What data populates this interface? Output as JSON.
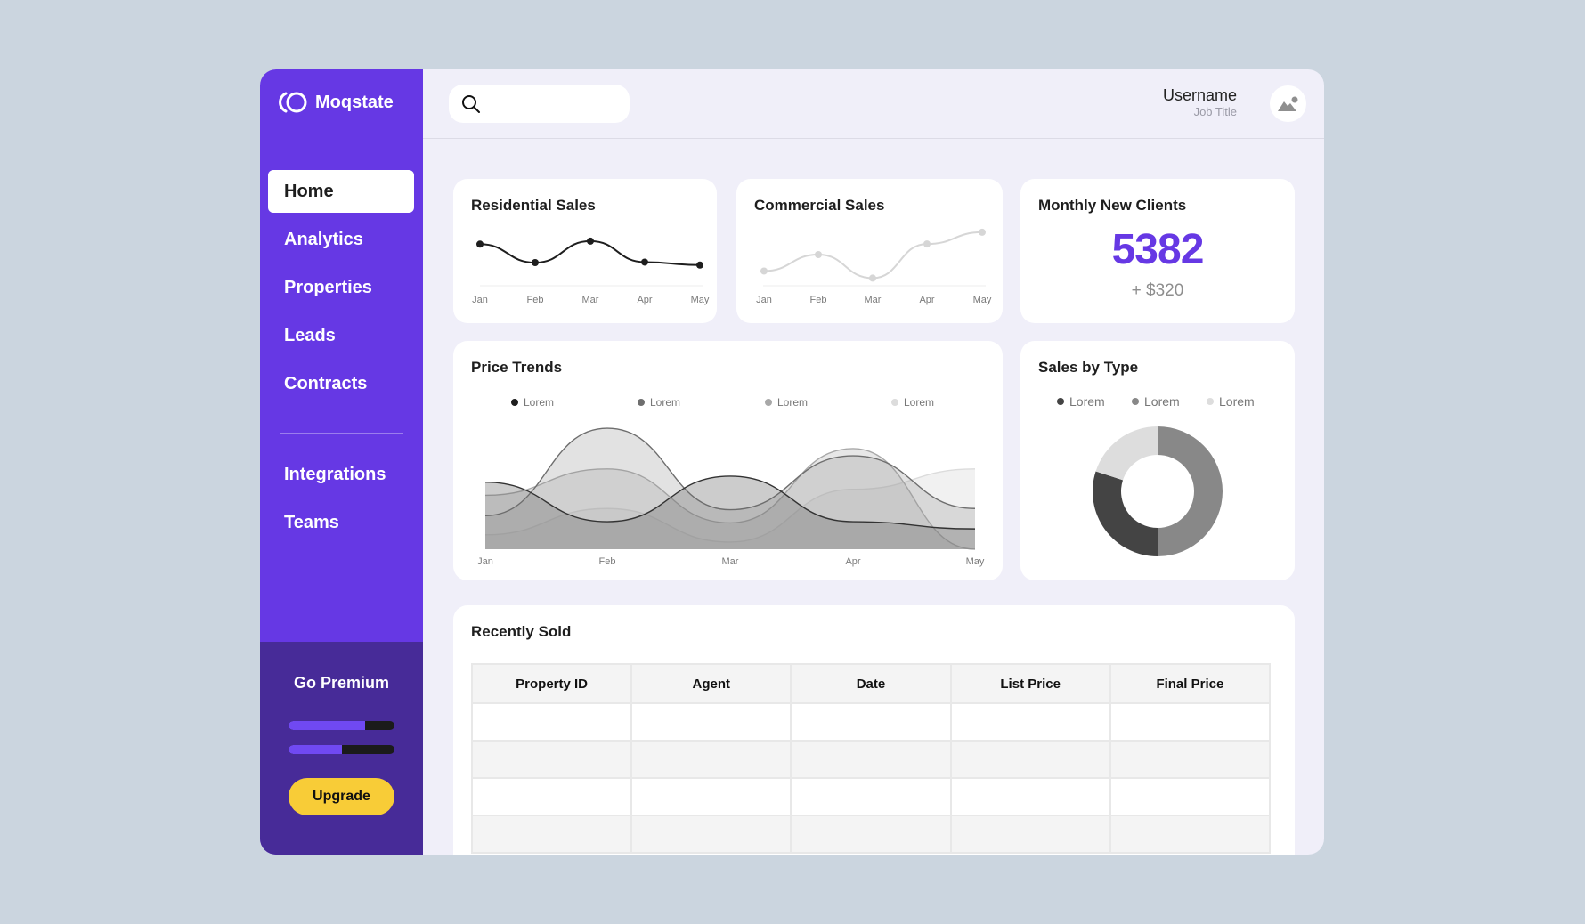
{
  "app": {
    "name": "Moqstate"
  },
  "sidebar": {
    "items": [
      {
        "label": "Home",
        "active": true
      },
      {
        "label": "Analytics",
        "active": false
      },
      {
        "label": "Properties",
        "active": false
      },
      {
        "label": "Leads",
        "active": false
      },
      {
        "label": "Contracts",
        "active": false
      },
      {
        "label": "Integrations",
        "active": false
      },
      {
        "label": "Teams",
        "active": false
      }
    ],
    "premium": {
      "title": "Go Premium",
      "progress": [
        72,
        50
      ],
      "upgrade_label": "Upgrade"
    }
  },
  "header": {
    "search": {
      "placeholder": "",
      "value": ""
    },
    "user": {
      "name": "Username",
      "title": "Job Title"
    }
  },
  "cards": {
    "residential": {
      "title": "Residential Sales"
    },
    "commercial": {
      "title": "Commercial Sales"
    },
    "monthly": {
      "title": "Monthly New Clients",
      "value": "5382",
      "delta": "+ $320"
    },
    "price_trends": {
      "title": "Price Trends",
      "legend": [
        "Lorem",
        "Lorem",
        "Lorem",
        "Lorem"
      ]
    },
    "sales_by_type": {
      "title": "Sales by Type",
      "legend": [
        "Lorem",
        "Lorem",
        "Lorem"
      ]
    },
    "recently_sold": {
      "title": "Recently Sold",
      "columns": [
        "Property ID",
        "Agent",
        "Date",
        "List Price",
        "Final Price"
      ],
      "rows": [
        [
          "",
          "",
          "",
          "",
          ""
        ],
        [
          "",
          "",
          "",
          "",
          ""
        ],
        [
          "",
          "",
          "",
          "",
          ""
        ],
        [
          "",
          "",
          "",
          "",
          ""
        ]
      ]
    }
  },
  "months": [
    "Jan",
    "Feb",
    "Mar",
    "Apr",
    "May"
  ],
  "colors": {
    "brand": "#6638e4",
    "brand_dark": "#472b98",
    "upgrade": "#f8cc37",
    "background": "#cbd5df",
    "content_bg": "#f0eff9"
  },
  "chart_data": [
    {
      "type": "line",
      "title": "Residential Sales",
      "categories": [
        "Jan",
        "Feb",
        "Mar",
        "Apr",
        "May"
      ],
      "values": [
        62,
        25,
        68,
        26,
        20
      ],
      "color": "#1e1e1e",
      "ylim": [
        0,
        100
      ],
      "grid": false
    },
    {
      "type": "line",
      "title": "Commercial Sales",
      "categories": [
        "Jan",
        "Feb",
        "Mar",
        "Apr",
        "May"
      ],
      "values": [
        22,
        50,
        10,
        68,
        88
      ],
      "color": "#d6d6d6",
      "ylim": [
        0,
        100
      ],
      "grid": false
    },
    {
      "type": "area",
      "title": "Price Trends",
      "categories": [
        "Jan",
        "Feb",
        "Mar",
        "Apr",
        "May"
      ],
      "legend_position": "top",
      "series": [
        {
          "name": "Lorem",
          "color": "#333333",
          "values": [
            56,
            23,
            61,
            23,
            17
          ]
        },
        {
          "name": "Lorem",
          "color": "#6e6e6e",
          "values": [
            28,
            101,
            33,
            78,
            34
          ]
        },
        {
          "name": "Lorem",
          "color": "#a8a8a8",
          "values": [
            45,
            67,
            22,
            84,
            0
          ]
        },
        {
          "name": "Lorem",
          "color": "#dcdcdc",
          "values": [
            12,
            34,
            6,
            50,
            67
          ]
        }
      ],
      "ylim": [
        0,
        110
      ],
      "grid": false
    },
    {
      "type": "pie",
      "title": "Sales by Type",
      "donut": true,
      "categories": [
        "Lorem",
        "Lorem",
        "Lorem"
      ],
      "values": [
        30,
        50,
        20
      ],
      "colors": [
        "#444444",
        "#888888",
        "#dddddd"
      ],
      "legend_position": "top"
    }
  ]
}
